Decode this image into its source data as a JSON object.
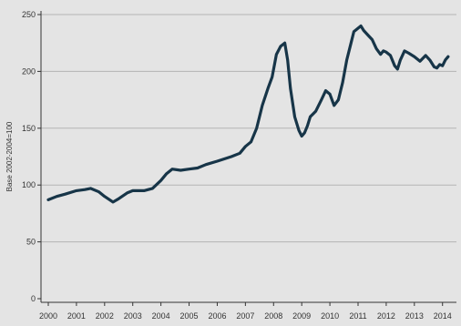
{
  "chart_data": {
    "type": "line",
    "title": "",
    "xlabel": "",
    "ylabel": "Base 2002-2004=100",
    "xlim": [
      2000,
      2014.3
    ],
    "ylim": [
      0,
      250
    ],
    "grid": true,
    "x_ticks": [
      "2000",
      "2001",
      "2002",
      "2003",
      "2004",
      "2005",
      "2006",
      "2007",
      "2008",
      "2009",
      "2010",
      "2011",
      "2012",
      "2013",
      "2014"
    ],
    "y_ticks": [
      "0",
      "50",
      "100",
      "150",
      "200",
      "250"
    ],
    "colors": {
      "line": "#173548",
      "grid": "#b5b5b5",
      "background": "#e4e4e4"
    },
    "series": [
      {
        "x": [
          2000.0,
          2000.3,
          2000.6,
          2001.0,
          2001.3,
          2001.5,
          2001.8,
          2002.0,
          2002.3,
          2002.5,
          2002.8,
          2003.0,
          2003.4,
          2003.7,
          2004.0,
          2004.2,
          2004.4,
          2004.7,
          2005.0,
          2005.3,
          2005.6,
          2006.0,
          2006.5,
          2006.8,
          2007.0,
          2007.2,
          2007.4,
          2007.6,
          2007.8,
          2007.95,
          2008.1,
          2008.25,
          2008.4,
          2008.5,
          2008.6,
          2008.75,
          2008.9,
          2009.0,
          2009.1,
          2009.2,
          2009.3,
          2009.5,
          2009.7,
          2009.85,
          2010.0,
          2010.15,
          2010.3,
          2010.45,
          2010.6,
          2010.75,
          2010.85,
          2011.0,
          2011.1,
          2011.2,
          2011.35,
          2011.5,
          2011.65,
          2011.8,
          2011.9,
          2012.0,
          2012.15,
          2012.3,
          2012.4,
          2012.5,
          2012.65,
          2012.8,
          2013.0,
          2013.2,
          2013.4,
          2013.55,
          2013.7,
          2013.8,
          2013.9,
          2014.0,
          2014.1,
          2014.2
        ],
        "y": [
          87,
          90,
          92,
          95,
          96,
          97,
          94,
          90,
          85,
          88,
          93,
          95,
          95,
          97,
          104,
          110,
          114,
          113,
          114,
          115,
          118,
          121,
          125,
          128,
          134,
          138,
          150,
          170,
          185,
          195,
          215,
          222,
          225,
          210,
          185,
          160,
          148,
          143,
          146,
          152,
          160,
          165,
          175,
          183,
          180,
          170,
          175,
          190,
          210,
          225,
          235,
          238,
          240,
          236,
          232,
          228,
          220,
          215,
          218,
          217,
          214,
          205,
          202,
          210,
          218,
          216,
          213,
          209,
          214,
          210,
          204,
          203,
          206,
          205,
          210,
          213
        ]
      }
    ]
  }
}
